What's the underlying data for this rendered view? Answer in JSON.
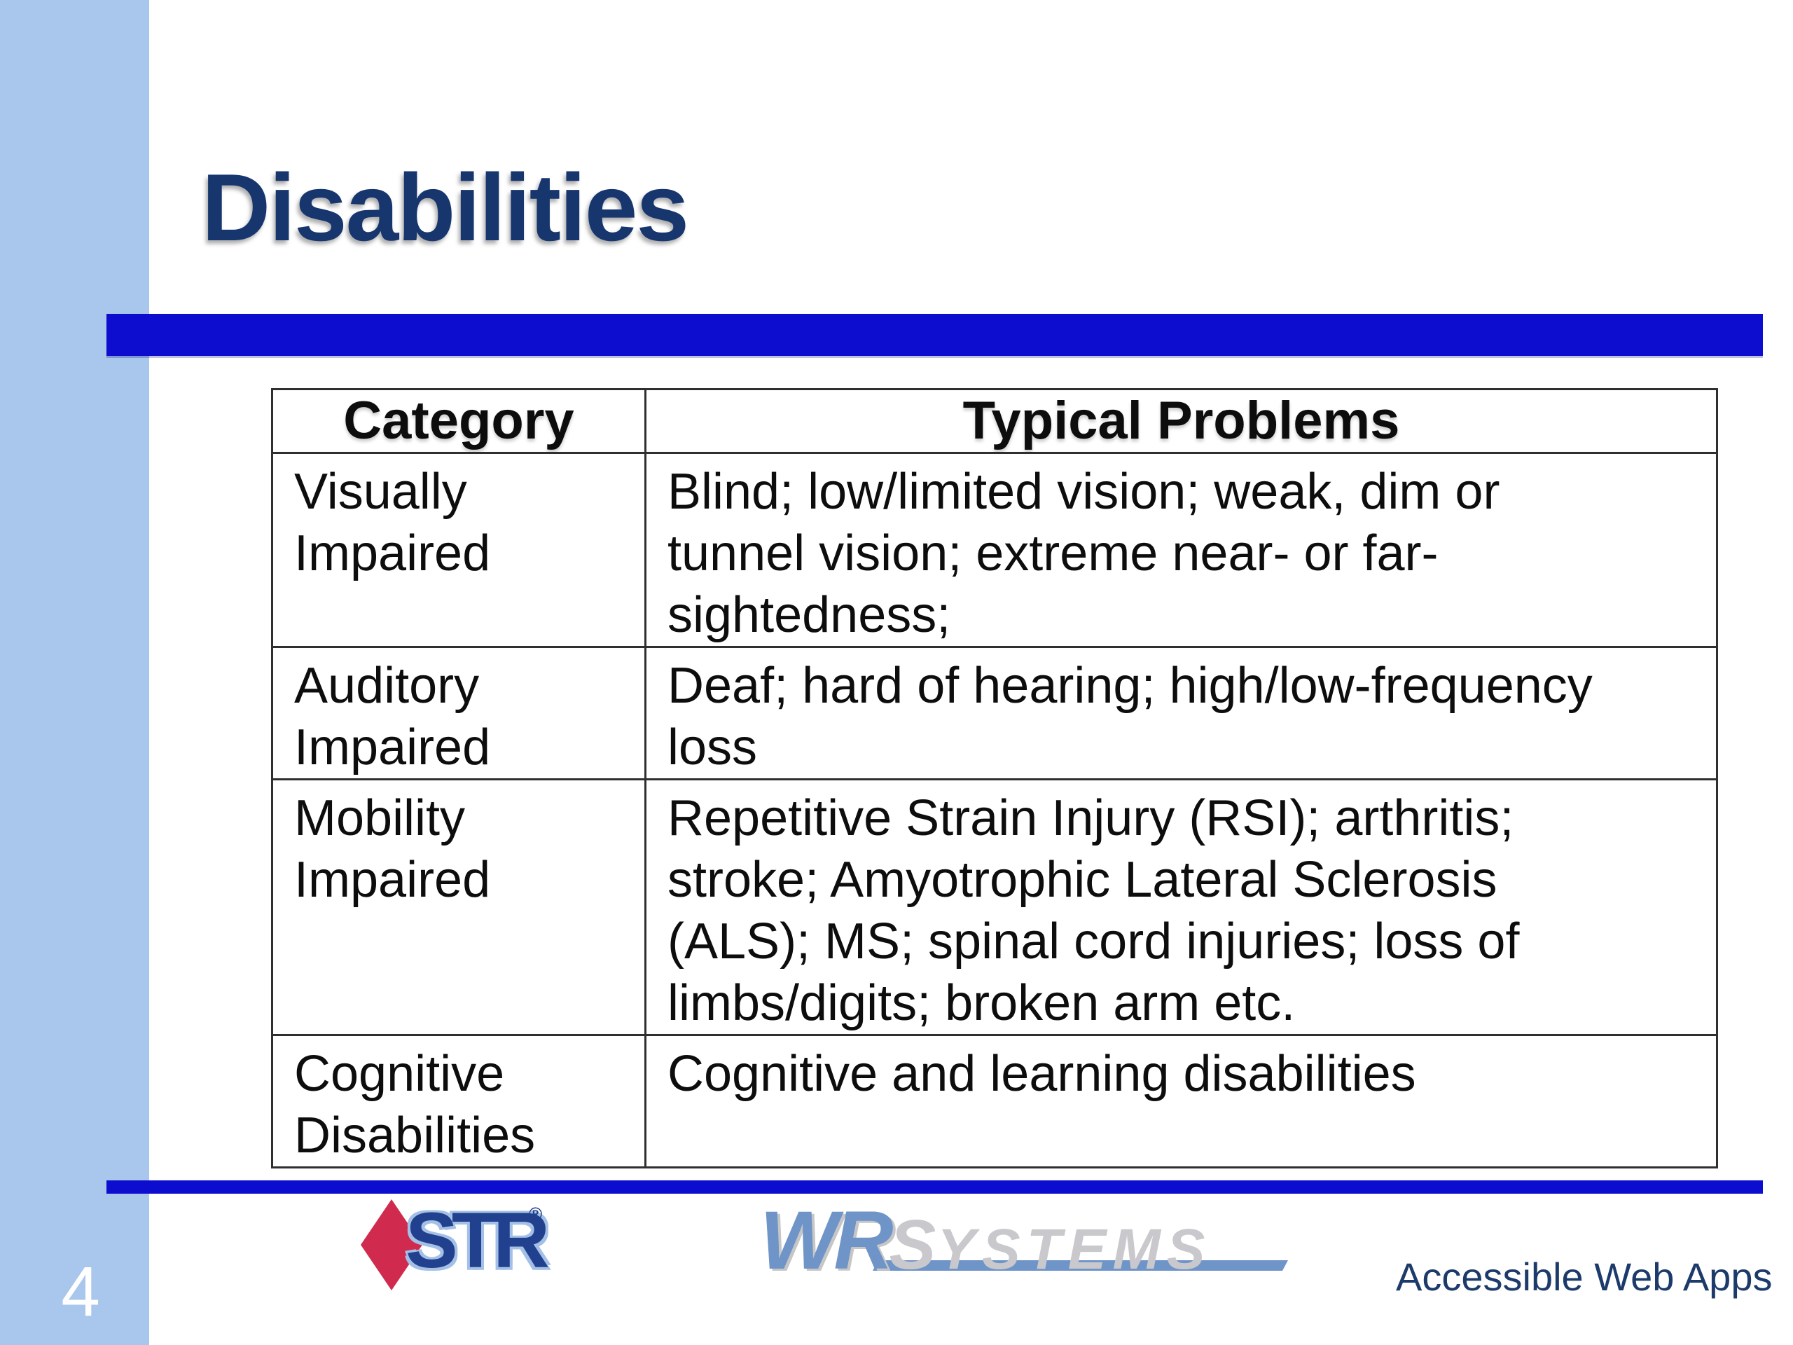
{
  "slide": {
    "title": "Disabilities",
    "page_number": "4",
    "footer_tagline": "Accessible Web Apps"
  },
  "table": {
    "headers": [
      "Category",
      "Typical Problems"
    ],
    "rows": [
      {
        "category": "Visually\nImpaired",
        "problems": "Blind; low/limited vision; weak, dim or\ntunnel vision; extreme near- or far-\nsightedness;"
      },
      {
        "category": "Auditory\nImpaired",
        "problems": "Deaf; hard of hearing; high/low-frequency\nloss"
      },
      {
        "category": "Mobility\nImpaired",
        "problems": "Repetitive Strain Injury (RSI); arthritis;\nstroke; Amyotrophic Lateral Sclerosis\n(ALS); MS; spinal cord injuries; loss of\nlimbs/digits; broken arm etc."
      },
      {
        "category": "Cognitive\nDisabilities",
        "problems": "Cognitive and learning disabilities"
      }
    ]
  },
  "logos": {
    "str": {
      "text": "STR",
      "registered": "®"
    },
    "wr_systems": {
      "wr": "WR",
      "systems_first": "S",
      "systems_rest": "YSTEMS"
    }
  },
  "colors": {
    "sidebar_blue": "#a9c6ec",
    "bar_blue": "#0d0dcf",
    "title_navy": "#17366d",
    "table_border": "#2f2f2f",
    "text_black": "#0d0d0d",
    "str_red": "#d02b4e",
    "str_blue": "#21408e",
    "str_halo": "#a4c0e6",
    "wr_blue": "#6f94c8",
    "systems_gray": "#c9c9cd",
    "tagline_navy": "#1c3a6a",
    "page_num_white": "#ffffff"
  }
}
